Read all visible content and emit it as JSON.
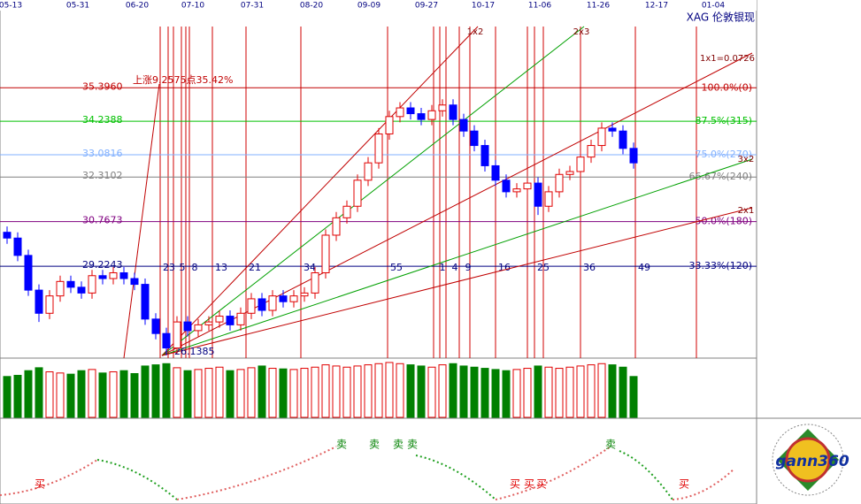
{
  "chart_data": {
    "type": "candlestick",
    "title": "XAG 伦敦银现",
    "dates": [
      "05-13",
      "05-31",
      "06-20",
      "07-10",
      "07-31",
      "08-20",
      "09-09",
      "09-27",
      "10-17",
      "11-06",
      "11-26",
      "12-17",
      "01-04"
    ],
    "ylim": [
      26.05,
      38.43
    ],
    "yticks": [
      {
        "value": 35.396,
        "label": "35.3960"
      },
      34.2388,
      33.0816,
      32.3102,
      30.7673,
      29.2243
    ],
    "level_labels": [
      "100.0%(0)",
      "87.5%(315)",
      "75.0%(270)",
      "66.67%(240)",
      "50.0%(180)",
      "33.33%(120)"
    ],
    "level_colors": [
      "#c00000",
      "#00c000",
      "#80b0ff",
      "#808080",
      "#800080",
      "#000080"
    ],
    "up_color": "#e00000",
    "down_color": "#0000ff",
    "volume_up_color": "#e00000",
    "volume_down_color": "#008000",
    "open": [
      30.4,
      30.2,
      29.6,
      28.4,
      27.6,
      28.2,
      28.7,
      28.5,
      28.3,
      28.9,
      28.8,
      29.0,
      28.8,
      28.6,
      27.4,
      26.9,
      26.4,
      27.3,
      27.0,
      27.2,
      27.3,
      27.5,
      27.2,
      27.6,
      28.1,
      27.7,
      28.2,
      28.0,
      28.2,
      28.3,
      29.0,
      30.3,
      30.9,
      31.3,
      32.2,
      32.8,
      33.8,
      34.4,
      34.7,
      34.5,
      34.3,
      34.6,
      34.8,
      34.3,
      33.9,
      33.4,
      32.7,
      32.2,
      31.8,
      31.9,
      32.1,
      31.3,
      31.8,
      32.4,
      32.5,
      33.0,
      33.4,
      34.0,
      33.9,
      33.3
    ],
    "high": [
      30.6,
      30.4,
      29.8,
      28.6,
      28.4,
      28.9,
      28.9,
      28.7,
      29.1,
      29.1,
      29.2,
      29.2,
      29.0,
      28.8,
      27.6,
      27.1,
      27.5,
      27.5,
      27.4,
      27.5,
      27.7,
      27.7,
      27.8,
      28.3,
      28.3,
      28.4,
      28.4,
      28.4,
      28.5,
      29.2,
      30.5,
      31.1,
      31.5,
      32.4,
      33.0,
      34.0,
      34.6,
      34.9,
      34.9,
      34.7,
      34.8,
      35.0,
      35.0,
      34.5,
      34.1,
      33.6,
      32.9,
      32.4,
      32.1,
      32.3,
      32.3,
      32.0,
      32.6,
      32.7,
      33.2,
      33.6,
      34.2,
      34.2,
      34.1,
      33.5
    ],
    "low": [
      30.0,
      29.4,
      28.2,
      27.3,
      27.4,
      28.0,
      28.3,
      28.1,
      28.1,
      28.6,
      28.6,
      28.6,
      28.4,
      27.2,
      26.7,
      26.14,
      26.2,
      26.8,
      26.8,
      27.0,
      27.1,
      27.0,
      27.0,
      27.4,
      27.5,
      27.5,
      27.8,
      27.8,
      28.0,
      28.1,
      28.8,
      30.1,
      30.7,
      31.1,
      32.0,
      32.6,
      33.6,
      34.2,
      34.3,
      34.1,
      34.1,
      34.4,
      34.1,
      33.7,
      33.2,
      32.5,
      32.0,
      31.6,
      31.6,
      31.7,
      31.0,
      31.1,
      31.6,
      32.2,
      32.3,
      32.8,
      33.2,
      33.7,
      33.1,
      32.6
    ],
    "close": [
      30.2,
      29.6,
      28.4,
      27.6,
      28.2,
      28.7,
      28.5,
      28.3,
      28.9,
      28.8,
      29.0,
      28.8,
      28.6,
      27.4,
      26.9,
      26.4,
      27.3,
      27.0,
      27.2,
      27.3,
      27.5,
      27.2,
      27.6,
      28.1,
      27.7,
      28.2,
      28.0,
      28.2,
      28.3,
      29.0,
      30.3,
      30.9,
      31.3,
      32.2,
      32.8,
      33.8,
      34.4,
      34.7,
      34.5,
      34.3,
      34.6,
      34.8,
      34.3,
      33.9,
      33.4,
      32.7,
      32.2,
      31.8,
      31.9,
      32.1,
      31.3,
      31.8,
      32.4,
      32.5,
      33.0,
      33.4,
      34.0,
      33.9,
      33.3,
      32.8
    ],
    "volume_lim": [
      0,
      100
    ],
    "volume": [
      70,
      72,
      80,
      85,
      78,
      76,
      74,
      80,
      82,
      76,
      78,
      80,
      75,
      88,
      90,
      92,
      85,
      80,
      82,
      84,
      86,
      80,
      82,
      85,
      88,
      84,
      83,
      82,
      84,
      86,
      90,
      88,
      86,
      88,
      90,
      92,
      94,
      92,
      90,
      88,
      86,
      90,
      92,
      88,
      86,
      84,
      82,
      80,
      82,
      84,
      88,
      86,
      84,
      86,
      88,
      90,
      92,
      90,
      86,
      70
    ],
    "low_point": 26.1385,
    "annotation": "上涨9.2575点35.42%",
    "angle_labels": [
      "1x2",
      "2x3",
      "1x1=0.0726",
      "3x2",
      "2x1"
    ],
    "cycles": [
      "23",
      "5",
      "8",
      "13",
      "21",
      "34",
      "55",
      "1",
      "4",
      "9",
      "16",
      "25",
      "36",
      "49"
    ],
    "signals": [
      "买",
      "卖",
      "卖",
      "卖",
      "卖",
      "买",
      "买",
      "买",
      "卖",
      "买"
    ],
    "logo": "gann360"
  }
}
